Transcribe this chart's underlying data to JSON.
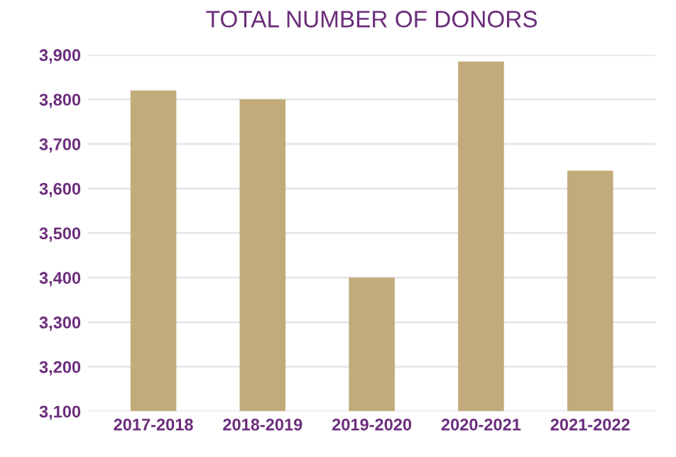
{
  "chart_data": {
    "type": "bar",
    "title": "TOTAL NUMBER OF DONORS",
    "categories": [
      "2017-2018",
      "2018-2019",
      "2019-2020",
      "2020-2021",
      "2021-2022"
    ],
    "values": [
      3820,
      3800,
      3400,
      3885,
      3640
    ],
    "color": "#c2ab7a",
    "ylim": [
      3100,
      3900
    ],
    "yticks": [
      {
        "value": 3100,
        "label": "3,100"
      },
      {
        "value": 3200,
        "label": "3,200"
      },
      {
        "value": 3300,
        "label": "3,300"
      },
      {
        "value": 3400,
        "label": "3,400"
      },
      {
        "value": 3500,
        "label": "3,500"
      },
      {
        "value": 3600,
        "label": "3,600"
      },
      {
        "value": 3700,
        "label": "3,700"
      },
      {
        "value": 3800,
        "label": "3,800"
      },
      {
        "value": 3900,
        "label": "3,900"
      }
    ],
    "grid": "y"
  }
}
